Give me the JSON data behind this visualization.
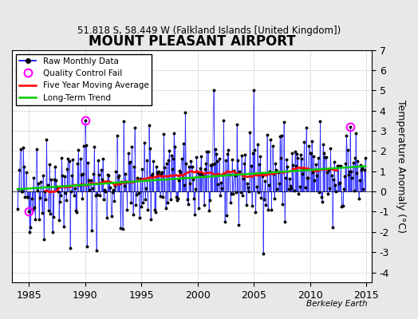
{
  "title": "MOUNT PLEASANT AIRPORT",
  "subtitle": "51.818 S, 58.449 W (Falkland Islands [United Kingdom])",
  "ylabel": "Temperature Anomaly (°C)",
  "xlabel_ticks": [
    1985,
    1990,
    1995,
    2000,
    2005,
    2010,
    2015
  ],
  "ylim": [
    -4.5,
    7.0
  ],
  "xlim": [
    1983.5,
    2015.5
  ],
  "yticks": [
    -4,
    -3,
    -2,
    -1,
    0,
    1,
    2,
    3,
    4,
    5,
    6,
    7
  ],
  "watermark": "Berkeley Earth",
  "bg_color": "#e8e8e8",
  "plot_bg_color": "#ffffff",
  "line_color": "#0000ff",
  "ma_color": "#ff0000",
  "trend_color": "#00cc00",
  "qc_color": "#ff00ff",
  "seed": 42,
  "n_years": 31,
  "start_year": 1984,
  "trend_slope": 0.025,
  "trend_intercept": 0.3,
  "qc_indices": [
    12,
    72,
    355
  ],
  "qc_values": [
    -1.0,
    3.5,
    3.2
  ]
}
